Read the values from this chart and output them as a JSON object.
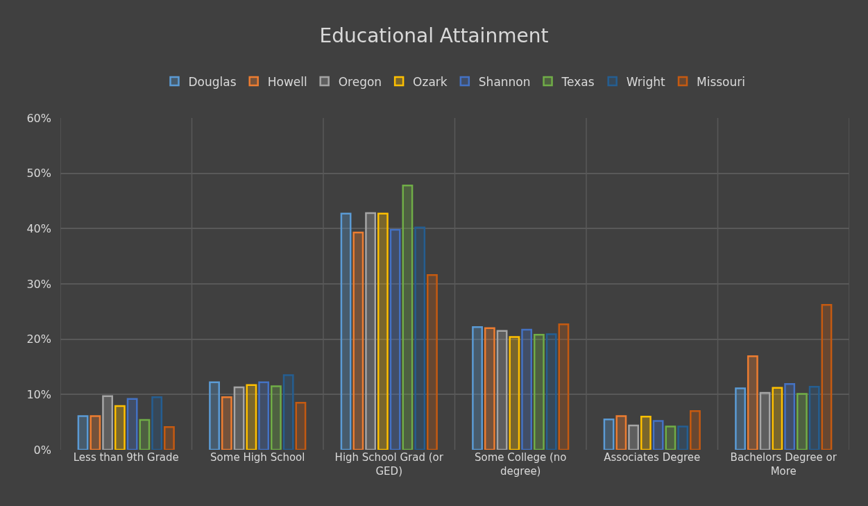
{
  "chart_data": {
    "type": "bar",
    "title": "Educational Attainment",
    "categories": [
      "Less than 9th Grade",
      "Some High School",
      "High School Grad (or GED)",
      "Some College (no degree)",
      "Associates Degree",
      "Bachelors Degree or More"
    ],
    "series": [
      {
        "name": "Douglas",
        "color": "#5b9bd5",
        "values": [
          6.1,
          12.2,
          42.7,
          22.2,
          5.5,
          11.1
        ]
      },
      {
        "name": "Howell",
        "color": "#ed7d31",
        "values": [
          6.1,
          9.5,
          39.3,
          22.0,
          6.1,
          16.9
        ]
      },
      {
        "name": "Oregon",
        "color": "#a5a5a5",
        "values": [
          9.7,
          11.3,
          42.8,
          21.5,
          4.4,
          10.3
        ]
      },
      {
        "name": "Ozark",
        "color": "#ffc000",
        "values": [
          7.9,
          11.7,
          42.7,
          20.4,
          6.0,
          11.2
        ]
      },
      {
        "name": "Shannon",
        "color": "#4472c4",
        "values": [
          9.2,
          12.2,
          39.8,
          21.7,
          5.2,
          11.9
        ]
      },
      {
        "name": "Texas",
        "color": "#70ad47",
        "values": [
          5.4,
          11.5,
          47.8,
          20.8,
          4.2,
          10.1
        ]
      },
      {
        "name": "Wright",
        "color": "#255e91",
        "values": [
          9.5,
          13.5,
          40.2,
          20.9,
          4.2,
          11.4
        ]
      },
      {
        "name": "Missouri",
        "color": "#c55a11",
        "values": [
          4.1,
          8.5,
          31.6,
          22.7,
          7.0,
          26.2
        ]
      }
    ],
    "ylim": [
      0,
      60
    ],
    "yticks": [
      {
        "value": 0,
        "label": "0%"
      },
      {
        "value": 10,
        "label": "10%"
      },
      {
        "value": 20,
        "label": "20%"
      },
      {
        "value": 30,
        "label": "30%"
      },
      {
        "value": 40,
        "label": "40%"
      },
      {
        "value": 50,
        "label": "50%"
      },
      {
        "value": 60,
        "label": "60%"
      }
    ],
    "grid": true,
    "legend": "top"
  }
}
